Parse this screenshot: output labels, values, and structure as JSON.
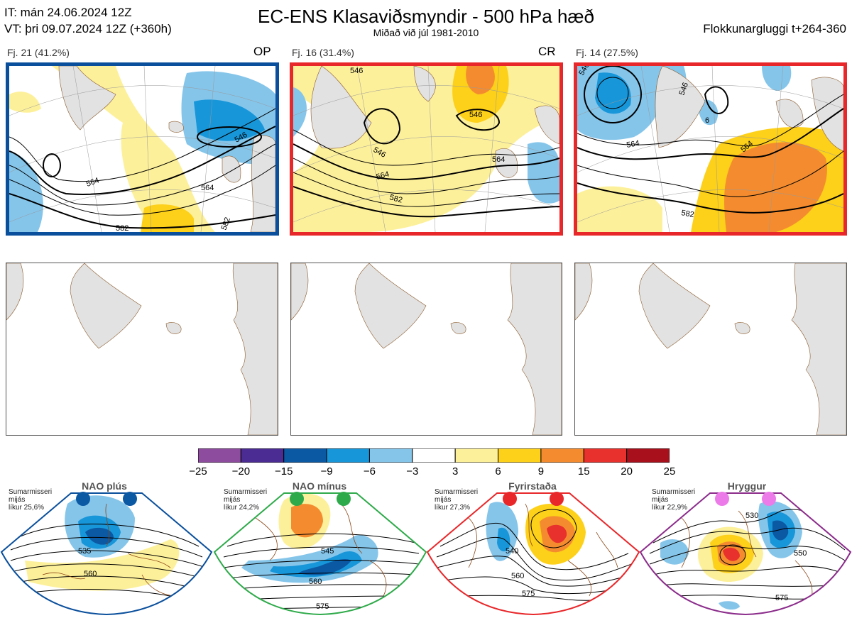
{
  "header": {
    "it_line": "IT: mán 24.06.2024 12Z",
    "vt_line": "VT: þri 09.07.2024 12Z  (+360h)",
    "title": "EC-ENS Klasaviðsmyndir - 500 hPa hæð",
    "subtitle": "Miðað við júl 1981-2010",
    "window": "Flokkunargluggi t+264-360"
  },
  "clusters": [
    {
      "label": "Fj. 21 (41.2%)",
      "tag": "OP",
      "border_color": "#0a4f9c",
      "contour_labels": [
        "546",
        "564",
        "582",
        "564",
        "582",
        "546"
      ]
    },
    {
      "label": "Fj. 16 (31.4%)",
      "tag": "CR",
      "border_color": "#e8272a",
      "contour_labels": [
        "546",
        "546",
        "546",
        "564",
        "564",
        "582",
        "546"
      ]
    },
    {
      "label": "Fj. 14 (27.5%)",
      "tag": "",
      "border_color": "#e8272a",
      "contour_labels": [
        "546",
        "546",
        "564",
        "564",
        "582",
        "546",
        "6"
      ]
    }
  ],
  "colorbar": {
    "ticks": [
      "−25",
      "−20",
      "−15",
      "−9",
      "−6",
      "−3",
      "3",
      "6",
      "9",
      "15",
      "20",
      "25"
    ],
    "colors": [
      "#8e4c9e",
      "#4b2c93",
      "#0b58a3",
      "#1796d9",
      "#85c5ea",
      "#ffffff",
      "#fdf09a",
      "#fdd01a",
      "#f48c2f",
      "#e8312d",
      "#a8101c"
    ]
  },
  "regimes": [
    {
      "name": "NAO plús",
      "info": "Sumarmisseri\nmijás\nlíkur 25,6%",
      "dot_color": "#0b58a3",
      "border_color": "#0a4f9c",
      "labels": [
        "535",
        "560"
      ]
    },
    {
      "name": "NAO mínus",
      "info": "Sumarmisseri\nmijás\nlíkur 24,2%",
      "dot_color": "#2eaa4a",
      "border_color": "#2eaa4a",
      "labels": [
        "545",
        "560",
        "575"
      ]
    },
    {
      "name": "Fyrirstaða",
      "info": "Sumarmisseri\nmijás\nlíkur 27,3%",
      "dot_color": "#e8272a",
      "border_color": "#e8272a",
      "labels": [
        "540",
        "560",
        "575"
      ]
    },
    {
      "name": "Hryggur",
      "info": "Sumarmisseri\nmijás\nlíkur 22,9%",
      "dot_color": "#ec7ae8",
      "border_color": "#8b2c8b",
      "labels": [
        "530",
        "550",
        "575"
      ]
    }
  ]
}
